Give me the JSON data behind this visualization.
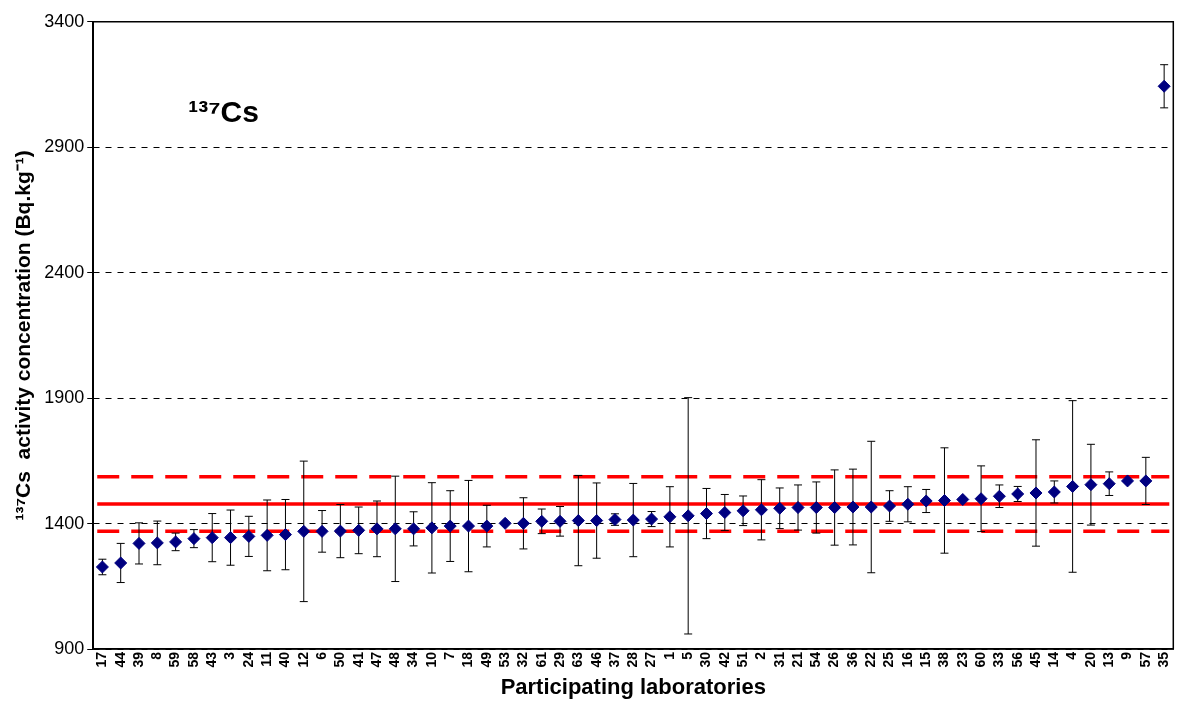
{
  "chart_data": {
    "type": "scatter",
    "xlabel": "Participating laboratories",
    "ylabel": "¹³⁷Cs  activity concentration (Bq.kg⁻¹)",
    "annotations": [
      "¹³⁷Cs"
    ],
    "categories": [
      "17",
      "44",
      "39",
      "8",
      "59",
      "58",
      "43",
      "3",
      "24",
      "11",
      "40",
      "12",
      "6",
      "50",
      "41",
      "47",
      "48",
      "34",
      "10",
      "7",
      "18",
      "49",
      "53",
      "32",
      "61",
      "29",
      "63",
      "46",
      "37",
      "28",
      "27",
      "1",
      "5",
      "30",
      "42",
      "51",
      "2",
      "31",
      "21",
      "54",
      "26",
      "36",
      "22",
      "25",
      "16",
      "15",
      "38",
      "23",
      "60",
      "33",
      "56",
      "45",
      "14",
      "4",
      "20",
      "13",
      "9",
      "57",
      "35"
    ],
    "series": [
      {
        "color": "#000080",
        "values": [
          1227,
          1243,
          1321,
          1323,
          1327,
          1340,
          1344,
          1344,
          1349,
          1353,
          1356,
          1369,
          1369,
          1370,
          1373,
          1379,
          1379,
          1379,
          1383,
          1390,
          1390,
          1390,
          1401,
          1401,
          1409,
          1409,
          1412,
          1412,
          1416,
          1414,
          1418,
          1427,
          1431,
          1440,
          1444,
          1451,
          1455,
          1461,
          1464,
          1464,
          1464,
          1466,
          1466,
          1470,
          1477,
          1490,
          1492,
          1496,
          1499,
          1509,
          1518,
          1522,
          1526,
          1548,
          1555,
          1559,
          1570,
          1570,
          3143
        ],
        "errors": [
          31,
          78,
          82,
          87,
          35,
          36,
          96,
          110,
          80,
          141,
          140,
          280,
          83,
          106,
          93,
          111,
          210,
          68,
          180,
          141,
          182,
          83,
          null,
          102,
          49,
          59,
          180,
          150,
          23,
          146,
          30,
          120,
          471,
          100,
          72,
          59,
          120,
          81,
          90,
          102,
          150,
          151,
          262,
          61,
          70,
          46,
          210,
          null,
          131,
          45,
          30,
          212,
          44,
          342,
          161,
          47,
          null,
          94,
          86
        ]
      }
    ],
    "ylim": [
      900,
      3400
    ],
    "yticks": [
      900,
      1400,
      1900,
      2400,
      2900,
      3400
    ],
    "grid": "y",
    "marker": "diamond",
    "ref_lines": [
      {
        "axis": "y",
        "value": 1478,
        "color": "#ff0000",
        "line_style": "solid"
      },
      {
        "axis": "y",
        "value": 1587,
        "color": "#ff0000",
        "line_style": "dashed"
      },
      {
        "axis": "y",
        "value": 1369,
        "color": "#ff0000",
        "line_style": "dashed"
      }
    ]
  }
}
